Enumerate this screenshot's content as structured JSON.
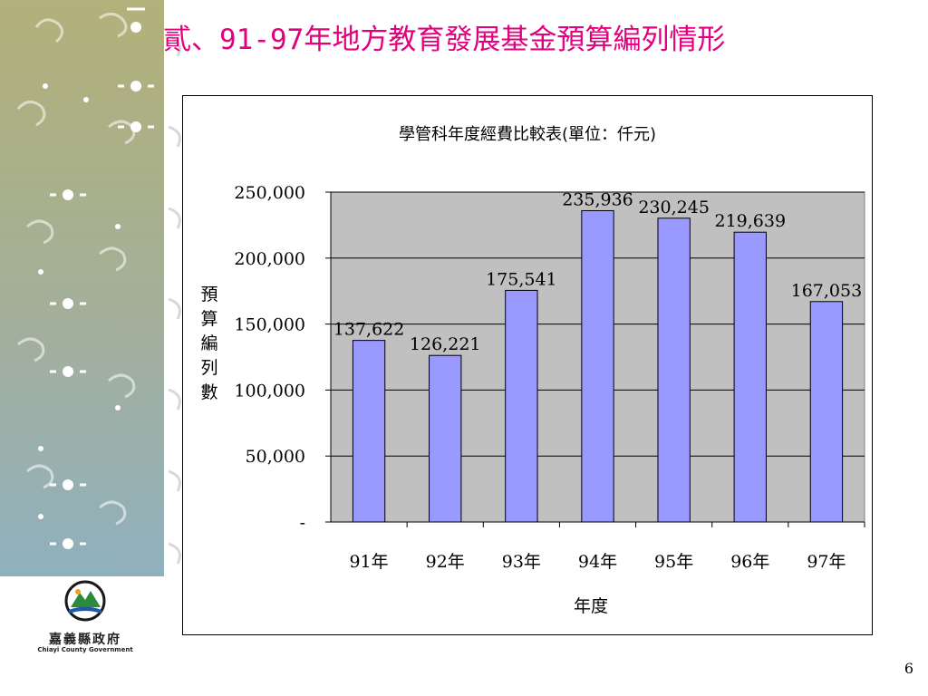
{
  "slide": {
    "title": "貳、91-97年地方教育發展基金預算編列情形",
    "page_number": "6"
  },
  "logo": {
    "name": "嘉義縣政府",
    "subtitle": "Chiayi County Government"
  },
  "colors": {
    "title": "#e2007e",
    "bar": "#9999ff",
    "plot_bg": "#c0c0c0"
  },
  "chart_data": {
    "type": "bar",
    "title": "學管科年度經費比較表(單位：仟元)",
    "xlabel": "年度",
    "ylabel": "預算編列數",
    "categories": [
      "91年",
      "92年",
      "93年",
      "94年",
      "95年",
      "96年",
      "97年"
    ],
    "values": [
      137622,
      126221,
      175541,
      235936,
      230245,
      219639,
      167053
    ],
    "data_labels": [
      "137,622",
      "126,221",
      "175,541",
      "235,936",
      "230,245",
      "219,639",
      "167,053"
    ],
    "ylim": [
      0,
      250000
    ],
    "yticks": [
      0,
      50000,
      100000,
      150000,
      200000,
      250000
    ],
    "ytick_labels": [
      "-",
      "50,000",
      "100,000",
      "150,000",
      "200,000",
      "250,000"
    ],
    "grid": true,
    "legend": "none"
  }
}
